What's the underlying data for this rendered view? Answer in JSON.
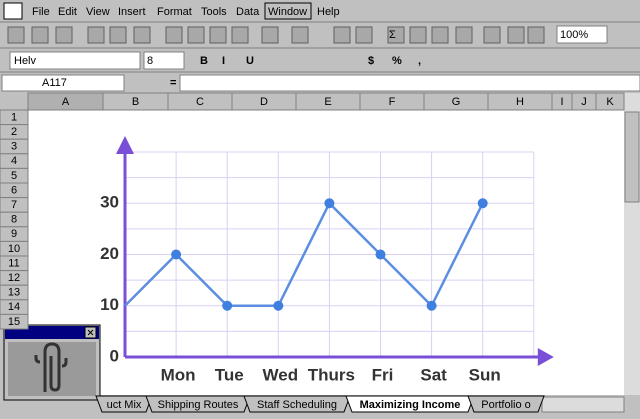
{
  "menu": [
    "File",
    "Edit",
    "View",
    "Insert",
    "Format",
    "Tools",
    "Data",
    "Window",
    "Help"
  ],
  "toolbar": {
    "zoom": "100%",
    "font": "Helv",
    "size": "8",
    "format_buttons": [
      "B",
      "I",
      "U"
    ],
    "number_buttons": [
      "$",
      "%",
      ","
    ],
    "sum": "Σ"
  },
  "formula_bar": {
    "name_box": "A117",
    "equals": "="
  },
  "columns": [
    "A",
    "B",
    "C",
    "D",
    "E",
    "F",
    "G",
    "H",
    "I",
    "J",
    "K"
  ],
  "rows": [
    "1",
    "2",
    "3",
    "4",
    "5",
    "6",
    "7",
    "8",
    "9",
    "10",
    "11",
    "12",
    "13",
    "14",
    "15"
  ],
  "sheet_tabs": [
    "uct Mix",
    "Shipping Routes",
    "Staff Scheduling",
    "Maximizing Income",
    "Portfolio o"
  ],
  "active_tab": 3,
  "chart_data": {
    "type": "line",
    "categories": [
      null,
      "Mon",
      "Tue",
      "Wed",
      "Thurs",
      "Fri",
      "Sat",
      "Sun"
    ],
    "values": [
      10,
      20,
      10,
      10,
      30,
      20,
      10,
      30
    ],
    "color": "#5b8ee0",
    "marker_color": "#3f7fe0",
    "axis_color": "#7a4fd8",
    "grid_color": "#d9d0f3",
    "ylim": [
      0,
      40
    ],
    "yticks": [
      0,
      10,
      20,
      30
    ],
    "ygrid": [
      5,
      10,
      15,
      20,
      25,
      30,
      35,
      40
    ],
    "grid": true
  }
}
